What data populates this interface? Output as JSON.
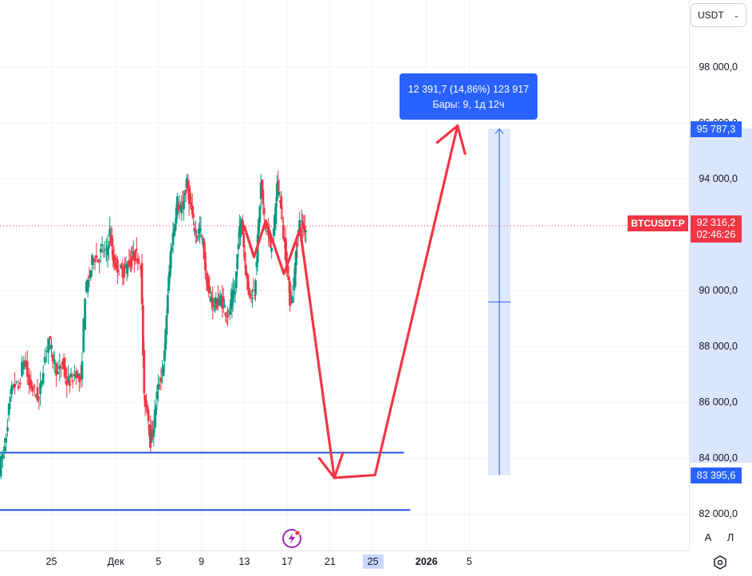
{
  "currency": {
    "label": "USDT"
  },
  "measure": {
    "line1": "12 391,7 (14,86%) 123 917",
    "line2": "Бары: 9, 1д 12ч",
    "top_label": "95 787,3",
    "bottom_label": "83 395,6",
    "top_value": 95787.3,
    "bottom_value": 83395.6,
    "x": 25.8
  },
  "symbol": {
    "label": "BTCUSDT.P",
    "price": "92 316,2",
    "countdown": "02:46:26",
    "value": 92316.2
  },
  "scale_buttons": {
    "auto": "A",
    "log": "Л"
  },
  "colors": {
    "up": "#089981",
    "down": "#f23645",
    "accent": "#2962ff",
    "drawing": "#f23645"
  },
  "icons": {
    "settings": "gear-icon",
    "flash": "lightning-icon"
  },
  "chart_data": {
    "type": "candlestick",
    "ylim": [
      80700,
      100400
    ],
    "xlim": [
      -20.8,
      43.5
    ],
    "yticks": [
      {
        "v": 82000,
        "label": "82 000,0"
      },
      {
        "v": 84000,
        "label": "84 000,0"
      },
      {
        "v": 86000,
        "label": "86 000,0"
      },
      {
        "v": 88000,
        "label": "88 000,0"
      },
      {
        "v": 90000,
        "label": "90 000,0"
      },
      {
        "v": 94000,
        "label": "94 000,0"
      },
      {
        "v": 96000,
        "label": "96 000,0"
      },
      {
        "v": 98000,
        "label": "98 000,0"
      }
    ],
    "xticks": [
      {
        "x": -16,
        "label": "25"
      },
      {
        "x": -10,
        "label": "Дек"
      },
      {
        "x": -6,
        "label": "5"
      },
      {
        "x": -2,
        "label": "9"
      },
      {
        "x": 2,
        "label": "13"
      },
      {
        "x": 6,
        "label": "17"
      },
      {
        "x": 10,
        "label": "21"
      },
      {
        "x": 14,
        "label": "25",
        "highlight": true
      },
      {
        "x": 19,
        "label": "2026",
        "bold": true
      },
      {
        "x": 23,
        "label": "5"
      }
    ],
    "candle_path": [
      [
        -20.8,
        83600
      ],
      [
        -20.3,
        84400
      ],
      [
        -19.9,
        85800
      ],
      [
        -19.5,
        86700
      ],
      [
        -19.0,
        86500
      ],
      [
        -18.5,
        87600
      ],
      [
        -18.0,
        86600
      ],
      [
        -17.5,
        86400
      ],
      [
        -17.1,
        86100
      ],
      [
        -16.7,
        87300
      ],
      [
        -16.2,
        88300
      ],
      [
        -15.8,
        87600
      ],
      [
        -15.3,
        87000
      ],
      [
        -14.9,
        87400
      ],
      [
        -14.5,
        86700
      ],
      [
        -14.1,
        86800
      ],
      [
        -13.6,
        87100
      ],
      [
        -13.2,
        86600
      ],
      [
        -12.8,
        89900
      ],
      [
        -12.4,
        90500
      ],
      [
        -12.0,
        91300
      ],
      [
        -11.6,
        91100
      ],
      [
        -11.2,
        91500
      ],
      [
        -10.8,
        91300
      ],
      [
        -10.5,
        92100
      ],
      [
        -10.2,
        91100
      ],
      [
        -9.9,
        90900
      ],
      [
        -9.5,
        90700
      ],
      [
        -9.2,
        90700
      ],
      [
        -8.9,
        90900
      ],
      [
        -8.6,
        91000
      ],
      [
        -8.3,
        91200
      ],
      [
        -8.0,
        91300
      ],
      [
        -7.6,
        91000
      ],
      [
        -7.3,
        86100
      ],
      [
        -7.0,
        85800
      ],
      [
        -6.7,
        84600
      ],
      [
        -6.4,
        85200
      ],
      [
        -6.1,
        86300
      ],
      [
        -5.7,
        86900
      ],
      [
        -5.4,
        87700
      ],
      [
        -5.1,
        89900
      ],
      [
        -4.8,
        91400
      ],
      [
        -4.5,
        92300
      ],
      [
        -4.2,
        93200
      ],
      [
        -3.9,
        92700
      ],
      [
        -3.6,
        93300
      ],
      [
        -3.3,
        93800
      ],
      [
        -3.0,
        93100
      ],
      [
        -2.7,
        92400
      ],
      [
        -2.4,
        92000
      ],
      [
        -2.1,
        92200
      ],
      [
        -1.8,
        91700
      ],
      [
        -1.5,
        90400
      ],
      [
        -1.2,
        89800
      ],
      [
        -0.9,
        89600
      ],
      [
        -0.6,
        89500
      ],
      [
        -0.3,
        89700
      ],
      [
        0.0,
        89600
      ],
      [
        0.3,
        89300
      ],
      [
        0.6,
        89100
      ],
      [
        0.9,
        89700
      ],
      [
        1.2,
        90000
      ],
      [
        1.5,
        91900
      ],
      [
        1.8,
        92600
      ],
      [
        2.1,
        91100
      ],
      [
        2.4,
        90000
      ],
      [
        2.7,
        89900
      ],
      [
        3.0,
        90000
      ],
      [
        3.3,
        91800
      ],
      [
        3.6,
        93800
      ],
      [
        3.9,
        92600
      ],
      [
        4.2,
        92100
      ],
      [
        4.5,
        91600
      ],
      [
        4.8,
        92000
      ],
      [
        5.1,
        93800
      ],
      [
        5.4,
        93300
      ],
      [
        5.7,
        92000
      ],
      [
        6.0,
        91000
      ],
      [
        6.3,
        89700
      ],
      [
        6.6,
        89800
      ],
      [
        6.9,
        91500
      ],
      [
        7.2,
        92400
      ],
      [
        7.5,
        92300
      ],
      [
        7.8,
        92200
      ]
    ],
    "lines": [
      {
        "value": 84200,
        "x_end": 16.9
      },
      {
        "value": 82150,
        "x_end": 17.5
      }
    ],
    "drawing_path": [
      [
        2.0,
        92300
      ],
      [
        2.9,
        91200
      ],
      [
        4.0,
        92500
      ],
      [
        5.7,
        90600
      ],
      [
        7.2,
        92200
      ],
      [
        10.4,
        83300
      ],
      [
        14.2,
        83400
      ],
      [
        21.9,
        95900
      ]
    ],
    "drawing_arrowheads": [
      [
        [
          9.0,
          84000
        ],
        [
          10.4,
          83300
        ],
        [
          11.2,
          84200
        ]
      ],
      [
        [
          20.0,
          95300
        ],
        [
          21.9,
          95900
        ],
        [
          22.6,
          94900
        ]
      ]
    ]
  }
}
